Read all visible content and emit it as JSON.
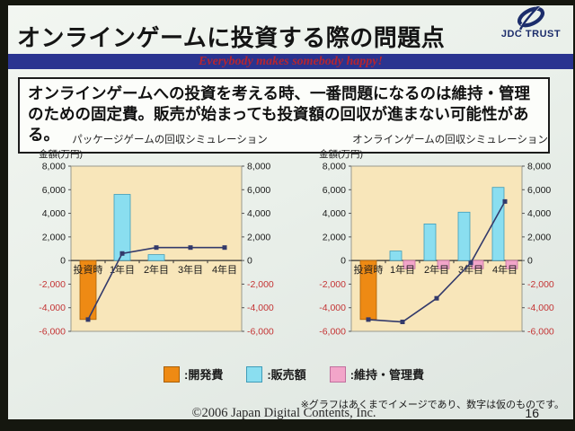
{
  "slide": {
    "title": "オンラインゲームに投資する際の問題点",
    "logo_text": "JDC TRUST",
    "banner_text": "Everybody makes somebody happy!",
    "summary": "オンラインゲームへの投資を考える時、一番問題になるのは維持・管理のための固定費。販売が始まっても投資額の回収が進まない可能性がある。",
    "note": "※グラフはあくまでイメージであり、数字は仮のものです。",
    "copyright": "©2006 Japan Digital Contents, Inc.",
    "page_number": "16"
  },
  "colors": {
    "banner_bg": "#2a3490",
    "banner_text": "#b52531",
    "dev_cost": "#ee8a14",
    "sales": "#8adef0",
    "maintenance": "#f2a5c9",
    "line": "#333a6b",
    "plot_bg": "#f8e6ba",
    "plot_border": "#9a9a8e",
    "negative_tick": "#c43434",
    "positive_tick": "#1a1a1a"
  },
  "legend": {
    "items": [
      {
        "label": ":開発費",
        "color": "#ee8a14",
        "border": "#a85f08"
      },
      {
        "label": ":販売額",
        "color": "#8adef0",
        "border": "#3f9cb8"
      },
      {
        "label": ":維持・管理費",
        "color": "#f2a5c9",
        "border": "#c0709e"
      }
    ]
  },
  "chart_data": [
    {
      "type": "bar",
      "title": "パッケージゲームの回収シミュレーション",
      "ylabel": "金額(万円)",
      "categories": [
        "投資時",
        "1年目",
        "2年目",
        "3年目",
        "4年目"
      ],
      "ylim": [
        -6000,
        8000
      ],
      "ytick_step": 2000,
      "grid": false,
      "legend_position": "none",
      "series": [
        {
          "name": "開発費",
          "type": "bar",
          "color": "#ee8a14",
          "border": "#a85f08",
          "values": [
            -5000,
            0,
            0,
            0,
            0
          ]
        },
        {
          "name": "販売額",
          "type": "bar",
          "color": "#8adef0",
          "border": "#3f9cb8",
          "values": [
            0,
            5600,
            500,
            0,
            0
          ]
        },
        {
          "name": "維持・管理費",
          "type": "bar",
          "color": "#f2a5c9",
          "border": "#c0709e",
          "values": [
            0,
            0,
            0,
            0,
            0
          ]
        },
        {
          "name": "line",
          "type": "line",
          "color": "#333a6b",
          "values": [
            -5000,
            600,
            1100,
            1100,
            1100
          ]
        }
      ]
    },
    {
      "type": "bar",
      "title": "オンラインゲームの回収シミュレーション",
      "ylabel": "金額(万円)",
      "categories": [
        "投資時",
        "1年目",
        "2年目",
        "3年目",
        "4年目"
      ],
      "ylim": [
        -6000,
        8000
      ],
      "ytick_step": 2000,
      "grid": false,
      "legend_position": "none",
      "series": [
        {
          "name": "開発費",
          "type": "bar",
          "color": "#ee8a14",
          "border": "#a85f08",
          "values": [
            -5000,
            0,
            0,
            0,
            0
          ]
        },
        {
          "name": "販売額",
          "type": "bar",
          "color": "#8adef0",
          "border": "#3f9cb8",
          "values": [
            0,
            800,
            3100,
            4100,
            6200
          ]
        },
        {
          "name": "維持・管理費",
          "type": "bar",
          "color": "#f2a5c9",
          "border": "#c0709e",
          "values": [
            0,
            -700,
            -700,
            -700,
            -700
          ]
        },
        {
          "name": "line",
          "type": "line",
          "color": "#333a6b",
          "values": [
            -5000,
            -5200,
            -3200,
            -200,
            5000
          ]
        }
      ]
    }
  ]
}
